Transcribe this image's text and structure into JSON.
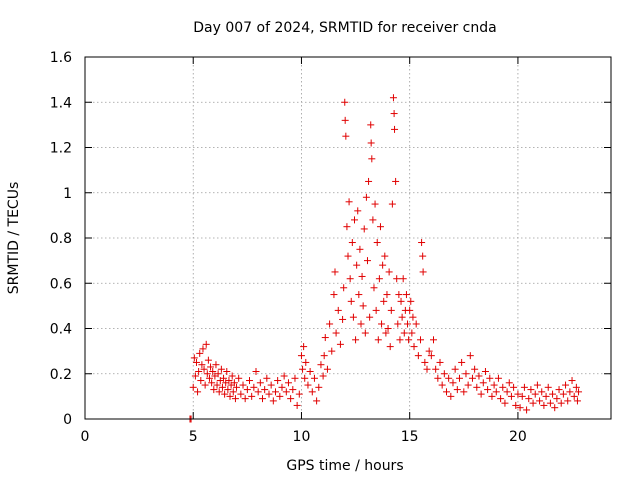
{
  "chart_data": {
    "type": "scatter",
    "title": "Day 007 of 2024, SRMTID for receiver cnda",
    "xlabel": "GPS time / hours",
    "ylabel": "SRMTID / TECUs",
    "xlim": [
      0,
      24.3
    ],
    "ylim": [
      0,
      1.6
    ],
    "xticks": [
      0,
      5,
      10,
      15,
      20
    ],
    "xtick_labels": [
      "0",
      "5",
      "10",
      "15",
      "20"
    ],
    "yticks": [
      0,
      0.2,
      0.4,
      0.6,
      0.8,
      1.0,
      1.2,
      1.4,
      1.6
    ],
    "ytick_labels": [
      "0",
      "0.2",
      "0.4",
      "0.6",
      "0.8",
      "1",
      "1.2",
      "1.4",
      "1.6"
    ],
    "grid": true,
    "marker": "+",
    "color": "#e00000",
    "series": [
      {
        "name": "SRMTID",
        "points": [
          [
            4.85,
            0.0
          ],
          [
            4.9,
            0.0
          ],
          [
            5.0,
            0.14
          ],
          [
            5.05,
            0.27
          ],
          [
            5.1,
            0.19
          ],
          [
            5.15,
            0.25
          ],
          [
            5.2,
            0.12
          ],
          [
            5.25,
            0.21
          ],
          [
            5.3,
            0.29
          ],
          [
            5.35,
            0.17
          ],
          [
            5.4,
            0.24
          ],
          [
            5.45,
            0.31
          ],
          [
            5.5,
            0.22
          ],
          [
            5.55,
            0.15
          ],
          [
            5.6,
            0.33
          ],
          [
            5.65,
            0.2
          ],
          [
            5.7,
            0.26
          ],
          [
            5.75,
            0.18
          ],
          [
            5.8,
            0.23
          ],
          [
            5.85,
            0.16
          ],
          [
            5.9,
            0.21
          ],
          [
            5.95,
            0.13
          ],
          [
            6.0,
            0.19
          ],
          [
            6.05,
            0.24
          ],
          [
            6.1,
            0.15
          ],
          [
            6.15,
            0.2
          ],
          [
            6.2,
            0.12
          ],
          [
            6.25,
            0.17
          ],
          [
            6.3,
            0.22
          ],
          [
            6.35,
            0.14
          ],
          [
            6.4,
            0.18
          ],
          [
            6.45,
            0.11
          ],
          [
            6.5,
            0.16
          ],
          [
            6.55,
            0.21
          ],
          [
            6.6,
            0.13
          ],
          [
            6.65,
            0.17
          ],
          [
            6.7,
            0.1
          ],
          [
            6.75,
            0.15
          ],
          [
            6.8,
            0.19
          ],
          [
            6.85,
            0.12
          ],
          [
            6.9,
            0.16
          ],
          [
            6.95,
            0.09
          ],
          [
            7.0,
            0.14
          ],
          [
            7.1,
            0.18
          ],
          [
            7.2,
            0.11
          ],
          [
            7.3,
            0.15
          ],
          [
            7.4,
            0.09
          ],
          [
            7.5,
            0.13
          ],
          [
            7.6,
            0.17
          ],
          [
            7.7,
            0.1
          ],
          [
            7.8,
            0.14
          ],
          [
            7.9,
            0.21
          ],
          [
            8.0,
            0.12
          ],
          [
            8.1,
            0.16
          ],
          [
            8.2,
            0.09
          ],
          [
            8.3,
            0.13
          ],
          [
            8.4,
            0.18
          ],
          [
            8.5,
            0.11
          ],
          [
            8.6,
            0.15
          ],
          [
            8.7,
            0.08
          ],
          [
            8.8,
            0.12
          ],
          [
            8.9,
            0.17
          ],
          [
            9.0,
            0.1
          ],
          [
            9.1,
            0.14
          ],
          [
            9.2,
            0.19
          ],
          [
            9.3,
            0.12
          ],
          [
            9.4,
            0.16
          ],
          [
            9.5,
            0.09
          ],
          [
            9.6,
            0.13
          ],
          [
            9.7,
            0.18
          ],
          [
            9.8,
            0.06
          ],
          [
            9.9,
            0.11
          ],
          [
            10.0,
            0.28
          ],
          [
            10.05,
            0.22
          ],
          [
            10.1,
            0.32
          ],
          [
            10.15,
            0.18
          ],
          [
            10.2,
            0.25
          ],
          [
            10.3,
            0.15
          ],
          [
            10.4,
            0.21
          ],
          [
            10.5,
            0.12
          ],
          [
            10.6,
            0.18
          ],
          [
            10.7,
            0.08
          ],
          [
            10.8,
            0.14
          ],
          [
            10.9,
            0.24
          ],
          [
            11.0,
            0.19
          ],
          [
            11.05,
            0.28
          ],
          [
            11.1,
            0.36
          ],
          [
            11.2,
            0.22
          ],
          [
            11.3,
            0.42
          ],
          [
            11.4,
            0.3
          ],
          [
            11.5,
            0.55
          ],
          [
            11.55,
            0.65
          ],
          [
            11.6,
            0.38
          ],
          [
            11.7,
            0.48
          ],
          [
            11.8,
            0.33
          ],
          [
            11.9,
            0.44
          ],
          [
            11.95,
            0.58
          ],
          [
            12.0,
            1.4
          ],
          [
            12.02,
            1.32
          ],
          [
            12.05,
            1.25
          ],
          [
            12.1,
            0.85
          ],
          [
            12.15,
            0.72
          ],
          [
            12.2,
            0.96
          ],
          [
            12.25,
            0.62
          ],
          [
            12.3,
            0.52
          ],
          [
            12.35,
            0.78
          ],
          [
            12.4,
            0.45
          ],
          [
            12.45,
            0.88
          ],
          [
            12.5,
            0.35
          ],
          [
            12.55,
            0.68
          ],
          [
            12.6,
            0.92
          ],
          [
            12.65,
            0.55
          ],
          [
            12.7,
            0.75
          ],
          [
            12.75,
            0.42
          ],
          [
            12.8,
            0.63
          ],
          [
            12.85,
            0.5
          ],
          [
            12.9,
            0.84
          ],
          [
            12.95,
            0.38
          ],
          [
            13.0,
            0.98
          ],
          [
            13.05,
            0.7
          ],
          [
            13.1,
            1.05
          ],
          [
            13.15,
            0.45
          ],
          [
            13.2,
            1.3
          ],
          [
            13.22,
            1.22
          ],
          [
            13.25,
            1.15
          ],
          [
            13.3,
            0.88
          ],
          [
            13.35,
            0.58
          ],
          [
            13.4,
            0.95
          ],
          [
            13.45,
            0.48
          ],
          [
            13.5,
            0.78
          ],
          [
            13.55,
            0.35
          ],
          [
            13.6,
            0.62
          ],
          [
            13.65,
            0.85
          ],
          [
            13.7,
            0.42
          ],
          [
            13.75,
            0.68
          ],
          [
            13.8,
            0.52
          ],
          [
            13.85,
            0.72
          ],
          [
            13.9,
            0.38
          ],
          [
            13.95,
            0.55
          ],
          [
            14.0,
            0.4
          ],
          [
            14.05,
            0.65
          ],
          [
            14.1,
            0.32
          ],
          [
            14.15,
            0.48
          ],
          [
            14.2,
            0.95
          ],
          [
            14.25,
            1.42
          ],
          [
            14.28,
            1.35
          ],
          [
            14.3,
            1.28
          ],
          [
            14.35,
            1.05
          ],
          [
            14.4,
            0.62
          ],
          [
            14.45,
            0.42
          ],
          [
            14.5,
            0.55
          ],
          [
            14.55,
            0.35
          ],
          [
            14.6,
            0.52
          ],
          [
            14.65,
            0.45
          ],
          [
            14.7,
            0.62
          ],
          [
            14.75,
            0.38
          ],
          [
            14.8,
            0.48
          ],
          [
            14.85,
            0.55
          ],
          [
            14.9,
            0.42
          ],
          [
            14.95,
            0.35
          ],
          [
            15.0,
            0.48
          ],
          [
            15.05,
            0.52
          ],
          [
            15.1,
            0.38
          ],
          [
            15.15,
            0.45
          ],
          [
            15.2,
            0.32
          ],
          [
            15.3,
            0.42
          ],
          [
            15.4,
            0.28
          ],
          [
            15.5,
            0.35
          ],
          [
            15.55,
            0.78
          ],
          [
            15.6,
            0.72
          ],
          [
            15.62,
            0.65
          ],
          [
            15.7,
            0.25
          ],
          [
            15.8,
            0.22
          ],
          [
            15.9,
            0.3
          ],
          [
            16.0,
            0.28
          ],
          [
            16.1,
            0.35
          ],
          [
            16.2,
            0.22
          ],
          [
            16.3,
            0.18
          ],
          [
            16.4,
            0.25
          ],
          [
            16.5,
            0.15
          ],
          [
            16.6,
            0.2
          ],
          [
            16.7,
            0.12
          ],
          [
            16.8,
            0.18
          ],
          [
            16.9,
            0.1
          ],
          [
            17.0,
            0.16
          ],
          [
            17.1,
            0.22
          ],
          [
            17.2,
            0.13
          ],
          [
            17.3,
            0.18
          ],
          [
            17.4,
            0.25
          ],
          [
            17.5,
            0.12
          ],
          [
            17.6,
            0.2
          ],
          [
            17.7,
            0.15
          ],
          [
            17.8,
            0.28
          ],
          [
            17.9,
            0.18
          ],
          [
            18.0,
            0.22
          ],
          [
            18.1,
            0.14
          ],
          [
            18.2,
            0.19
          ],
          [
            18.3,
            0.11
          ],
          [
            18.4,
            0.16
          ],
          [
            18.5,
            0.21
          ],
          [
            18.6,
            0.13
          ],
          [
            18.7,
            0.18
          ],
          [
            18.8,
            0.1
          ],
          [
            18.9,
            0.15
          ],
          [
            19.0,
            0.12
          ],
          [
            19.1,
            0.18
          ],
          [
            19.2,
            0.09
          ],
          [
            19.3,
            0.14
          ],
          [
            19.4,
            0.07
          ],
          [
            19.5,
            0.12
          ],
          [
            19.6,
            0.16
          ],
          [
            19.7,
            0.1
          ],
          [
            19.8,
            0.14
          ],
          [
            19.9,
            0.06
          ],
          [
            20.0,
            0.11
          ],
          [
            20.1,
            0.05
          ],
          [
            20.2,
            0.1
          ],
          [
            20.3,
            0.14
          ],
          [
            20.4,
            0.04
          ],
          [
            20.5,
            0.09
          ],
          [
            20.6,
            0.13
          ],
          [
            20.7,
            0.07
          ],
          [
            20.8,
            0.11
          ],
          [
            20.9,
            0.15
          ],
          [
            21.0,
            0.08
          ],
          [
            21.1,
            0.12
          ],
          [
            21.2,
            0.06
          ],
          [
            21.3,
            0.1
          ],
          [
            21.4,
            0.14
          ],
          [
            21.5,
            0.07
          ],
          [
            21.6,
            0.11
          ],
          [
            21.7,
            0.05
          ],
          [
            21.8,
            0.09
          ],
          [
            21.9,
            0.13
          ],
          [
            22.0,
            0.07
          ],
          [
            22.1,
            0.11
          ],
          [
            22.2,
            0.15
          ],
          [
            22.3,
            0.08
          ],
          [
            22.4,
            0.12
          ],
          [
            22.5,
            0.17
          ],
          [
            22.6,
            0.1
          ],
          [
            22.7,
            0.14
          ],
          [
            22.75,
            0.08
          ],
          [
            22.8,
            0.12
          ]
        ]
      }
    ]
  }
}
